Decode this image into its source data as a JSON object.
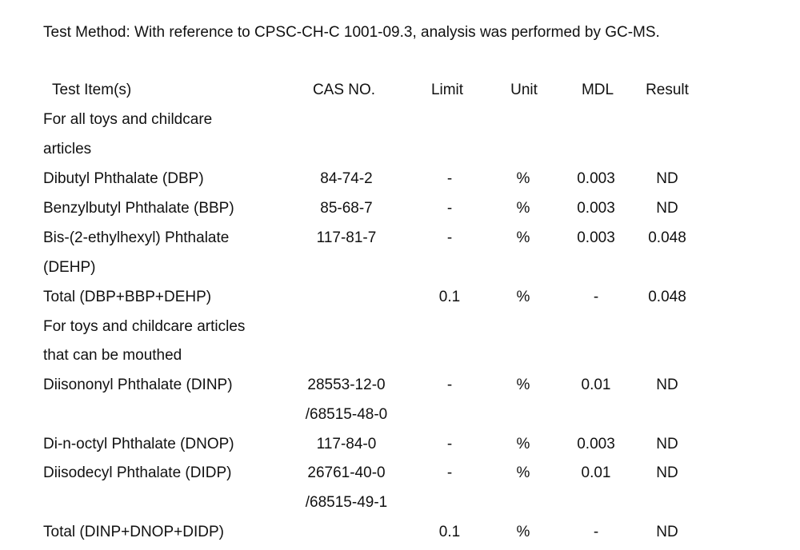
{
  "method": "Test Method: With reference to CPSC-CH-C 1001-09.3, analysis was performed by GC-MS.",
  "headers": {
    "item": "Test Item(s)",
    "cas": "CAS NO.",
    "limit": "Limit",
    "unit": "Unit",
    "mdl": "MDL",
    "result": "Result"
  },
  "lines": [
    {
      "item": "For all toys and childcare",
      "cas": "",
      "limit": "",
      "unit": "",
      "mdl": "",
      "result": ""
    },
    {
      "item": "articles",
      "cas": "",
      "limit": "",
      "unit": "",
      "mdl": "",
      "result": ""
    },
    {
      "item": "Dibutyl Phthalate (DBP)",
      "cas": "84-74-2",
      "limit": "-",
      "unit": "%",
      "mdl": "0.003",
      "result": "ND"
    },
    {
      "item": "Benzylbutyl Phthalate (BBP)",
      "cas": "85-68-7",
      "limit": "-",
      "unit": "%",
      "mdl": "0.003",
      "result": "ND"
    },
    {
      "item": "Bis-(2-ethylhexyl) Phthalate",
      "cas": "117-81-7",
      "limit": "-",
      "unit": "%",
      "mdl": "0.003",
      "result": "0.048"
    },
    {
      "item": "(DEHP)",
      "cas": "",
      "limit": "",
      "unit": "",
      "mdl": "",
      "result": ""
    },
    {
      "item": "Total (DBP+BBP+DEHP)",
      "cas": "",
      "limit": "0.1",
      "unit": "%",
      "mdl": "-",
      "result": "0.048"
    },
    {
      "item": "For toys and childcare articles",
      "cas": "",
      "limit": "",
      "unit": "",
      "mdl": "",
      "result": ""
    },
    {
      "item": "that can be mouthed",
      "cas": "",
      "limit": "",
      "unit": "",
      "mdl": "",
      "result": ""
    },
    {
      "item": "Diisononyl Phthalate (DINP)",
      "cas": "28553-12-0",
      "limit": "-",
      "unit": "%",
      "mdl": "0.01",
      "result": "ND"
    },
    {
      "item": "",
      "cas": "/68515-48-0",
      "limit": "",
      "unit": "",
      "mdl": "",
      "result": ""
    },
    {
      "item": "Di-n-octyl Phthalate (DNOP)",
      "cas": "117-84-0",
      "limit": "-",
      "unit": "%",
      "mdl": "0.003",
      "result": "ND"
    },
    {
      "item": "Diisodecyl Phthalate (DIDP)",
      "cas": "26761-40-0",
      "limit": "-",
      "unit": "%",
      "mdl": "0.01",
      "result": "ND"
    },
    {
      "item": "",
      "cas": "/68515-49-1",
      "limit": "",
      "unit": "",
      "mdl": "",
      "result": ""
    },
    {
      "item": "Total (DINP+DNOP+DIDP)",
      "cas": "",
      "limit": "0.1",
      "unit": "%",
      "mdl": "-",
      "result": "ND"
    }
  ]
}
